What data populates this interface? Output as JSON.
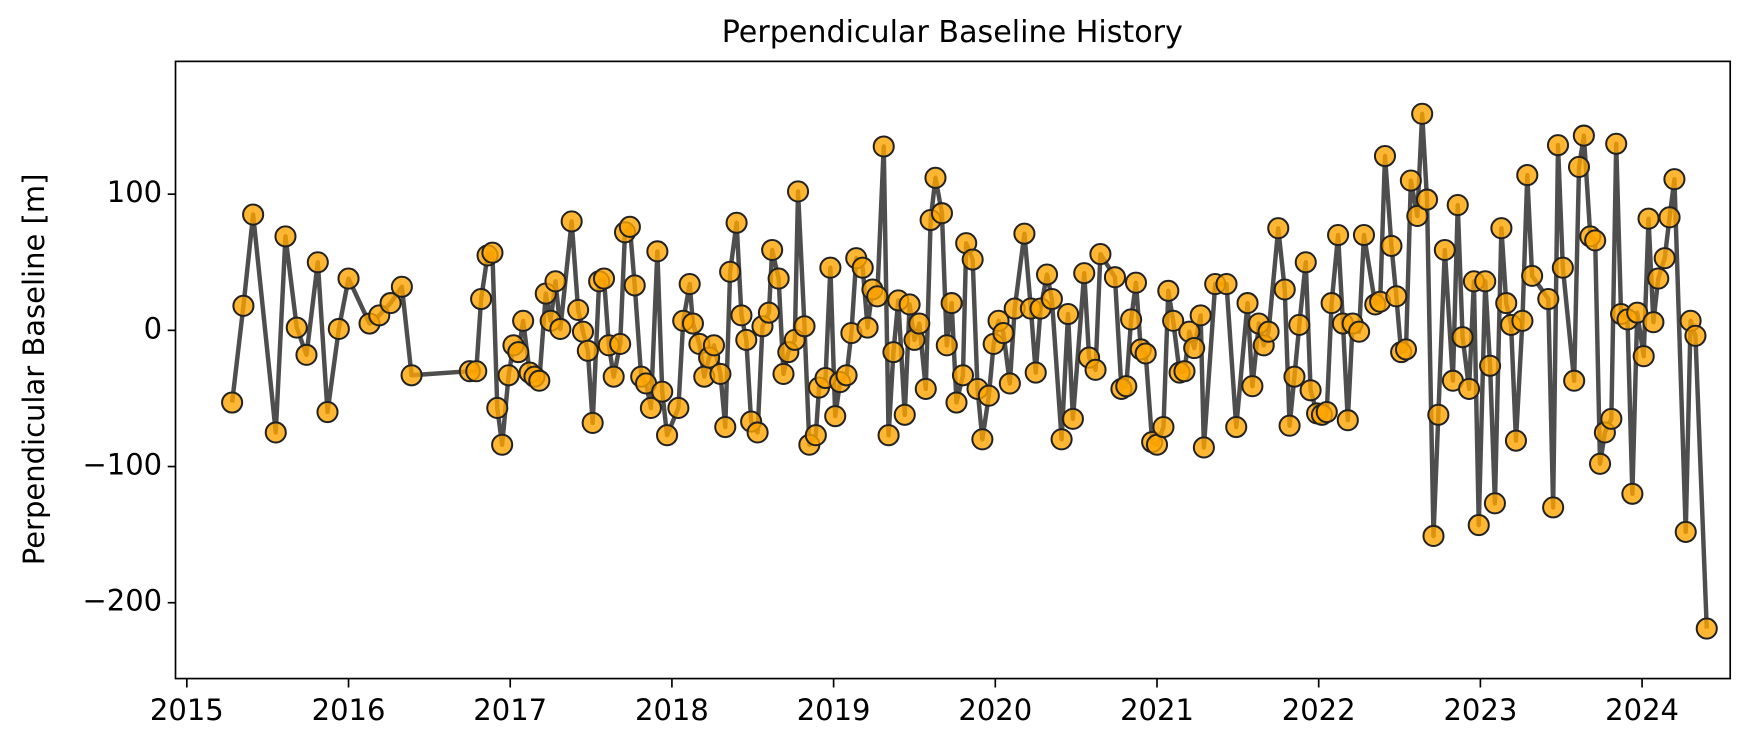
{
  "chart_data": {
    "type": "line",
    "title": "Perpendicular Baseline History",
    "ylabel": "Perpendicular Baseline [m]",
    "x": [
      2015.28,
      2015.35,
      2015.41,
      2015.55,
      2015.61,
      2015.68,
      2015.74,
      2015.81,
      2015.87,
      2015.94,
      2016.0,
      2016.13,
      2016.19,
      2016.26,
      2016.33,
      2016.39,
      2016.75,
      2016.79,
      2016.82,
      2016.86,
      2016.89,
      2016.92,
      2016.95,
      2016.99,
      2017.02,
      2017.05,
      2017.08,
      2017.12,
      2017.15,
      2017.18,
      2017.22,
      2017.25,
      2017.28,
      2017.31,
      2017.38,
      2017.42,
      2017.45,
      2017.48,
      2017.51,
      2017.55,
      2017.58,
      2017.61,
      2017.64,
      2017.68,
      2017.71,
      2017.74,
      2017.77,
      2017.81,
      2017.84,
      2017.87,
      2017.91,
      2017.94,
      2017.97,
      2018.04,
      2018.07,
      2018.11,
      2018.13,
      2018.17,
      2018.2,
      2018.23,
      2018.26,
      2018.3,
      2018.33,
      2018.36,
      2018.4,
      2018.43,
      2018.46,
      2018.49,
      2018.53,
      2018.56,
      2018.6,
      2018.62,
      2018.66,
      2018.69,
      2018.72,
      2018.76,
      2018.78,
      2018.82,
      2018.85,
      2018.89,
      2018.91,
      2018.95,
      2018.98,
      2019.01,
      2019.04,
      2019.08,
      2019.11,
      2019.14,
      2019.18,
      2019.21,
      2019.24,
      2019.27,
      2019.31,
      2019.34,
      2019.37,
      2019.4,
      2019.44,
      2019.47,
      2019.5,
      2019.53,
      2019.57,
      2019.6,
      2019.63,
      2019.67,
      2019.7,
      2019.73,
      2019.76,
      2019.8,
      2019.82,
      2019.86,
      2019.89,
      2019.92,
      2019.96,
      2019.99,
      2020.02,
      2020.05,
      2020.09,
      2020.12,
      2020.18,
      2020.22,
      2020.25,
      2020.28,
      2020.32,
      2020.35,
      2020.41,
      2020.45,
      2020.48,
      2020.55,
      2020.58,
      2020.62,
      2020.65,
      2020.74,
      2020.78,
      2020.81,
      2020.84,
      2020.87,
      2020.9,
      2020.93,
      2020.97,
      2021.0,
      2021.04,
      2021.07,
      2021.1,
      2021.14,
      2021.17,
      2021.2,
      2021.23,
      2021.27,
      2021.29,
      2021.36,
      2021.43,
      2021.49,
      2021.56,
      2021.59,
      2021.63,
      2021.66,
      2021.69,
      2021.75,
      2021.79,
      2021.82,
      2021.85,
      2021.88,
      2021.92,
      2021.95,
      2021.99,
      2022.02,
      2022.05,
      2022.08,
      2022.12,
      2022.15,
      2022.18,
      2022.21,
      2022.25,
      2022.28,
      2022.35,
      2022.38,
      2022.41,
      2022.45,
      2022.48,
      2022.51,
      2022.54,
      2022.57,
      2022.61,
      2022.64,
      2022.67,
      2022.71,
      2022.74,
      2022.78,
      2022.83,
      2022.86,
      2022.89,
      2022.93,
      2022.96,
      2022.99,
      2023.03,
      2023.06,
      2023.09,
      2023.13,
      2023.16,
      2023.19,
      2023.22,
      2023.26,
      2023.29,
      2023.32,
      2023.42,
      2023.45,
      2023.48,
      2023.51,
      2023.58,
      2023.61,
      2023.64,
      2023.68,
      2023.71,
      2023.74,
      2023.77,
      2023.81,
      2023.84,
      2023.87,
      2023.91,
      2023.94,
      2023.97,
      2024.01,
      2024.04,
      2024.07,
      2024.1,
      2024.14,
      2024.17,
      2024.2,
      2024.27,
      2024.3,
      2024.33,
      2024.4
    ],
    "series": [
      {
        "color": "orange",
        "line_color": "#444444",
        "values": [
          -53,
          18,
          85,
          -75,
          69,
          2,
          -18,
          50,
          -60,
          1,
          38,
          5,
          11,
          20,
          32,
          -33,
          -30,
          -30,
          23,
          55,
          57,
          -57,
          -84,
          -33,
          -11,
          -16,
          7,
          -31,
          -34,
          -37,
          27,
          7,
          36,
          1,
          80,
          15,
          -1,
          -15,
          -68,
          36,
          38,
          -11,
          -34,
          -10,
          72,
          76,
          33,
          -34,
          -39,
          -57,
          58,
          -45,
          -77,
          -57,
          7,
          34,
          5,
          -10,
          -34,
          -20,
          -11,
          -32,
          -71,
          43,
          79,
          11,
          -7,
          -67,
          -75,
          3,
          13,
          59,
          38,
          -32,
          -16,
          -7,
          102,
          3,
          -84,
          -77,
          -42,
          -35,
          46,
          -63,
          -38,
          -33,
          -2,
          53,
          46,
          2,
          30,
          25,
          135,
          -77,
          -16,
          22,
          -62,
          19,
          -7,
          5,
          -43,
          81,
          112,
          86,
          -11,
          20,
          -53,
          -33,
          64,
          52,
          -43,
          -80,
          -48,
          -10,
          7,
          -2,
          -39,
          16,
          71,
          16,
          -31,
          16,
          41,
          23,
          -80,
          12,
          -65,
          42,
          -20,
          -29,
          56,
          39,
          -43,
          -41,
          8,
          35,
          -14,
          -17,
          -82,
          -84,
          -71,
          29,
          7,
          -31,
          -30,
          -1,
          -13,
          11,
          -86,
          34,
          34,
          -71,
          20,
          -41,
          5,
          -11,
          -1,
          75,
          30,
          -70,
          -34,
          4,
          50,
          -44,
          -61,
          -62,
          -60,
          20,
          70,
          5,
          -66,
          5,
          -1,
          70,
          19,
          21,
          128,
          62,
          25,
          -16,
          -14,
          110,
          84,
          159,
          96,
          -151,
          -62,
          59,
          -37,
          92,
          -5,
          -43,
          36,
          -143,
          36,
          -26,
          -127,
          75,
          20,
          4,
          -81,
          7,
          114,
          40,
          23,
          -130,
          136,
          46,
          -37,
          120,
          143,
          69,
          66,
          -98,
          -75,
          -65,
          137,
          12,
          8,
          -120,
          13,
          -19,
          82,
          6,
          38,
          53,
          83,
          111,
          -148,
          7,
          -4,
          -219
        ]
      }
    ],
    "xlim": [
      2014.93,
      2024.545
    ],
    "xticks": [
      2015,
      2016,
      2017,
      2018,
      2019,
      2020,
      2021,
      2022,
      2023,
      2024
    ],
    "ylim": [
      -255.7,
      197.5
    ],
    "yticks": [
      {
        "value": -200,
        "label": "−200"
      },
      {
        "value": -100,
        "label": "−100"
      },
      0,
      100
    ]
  }
}
